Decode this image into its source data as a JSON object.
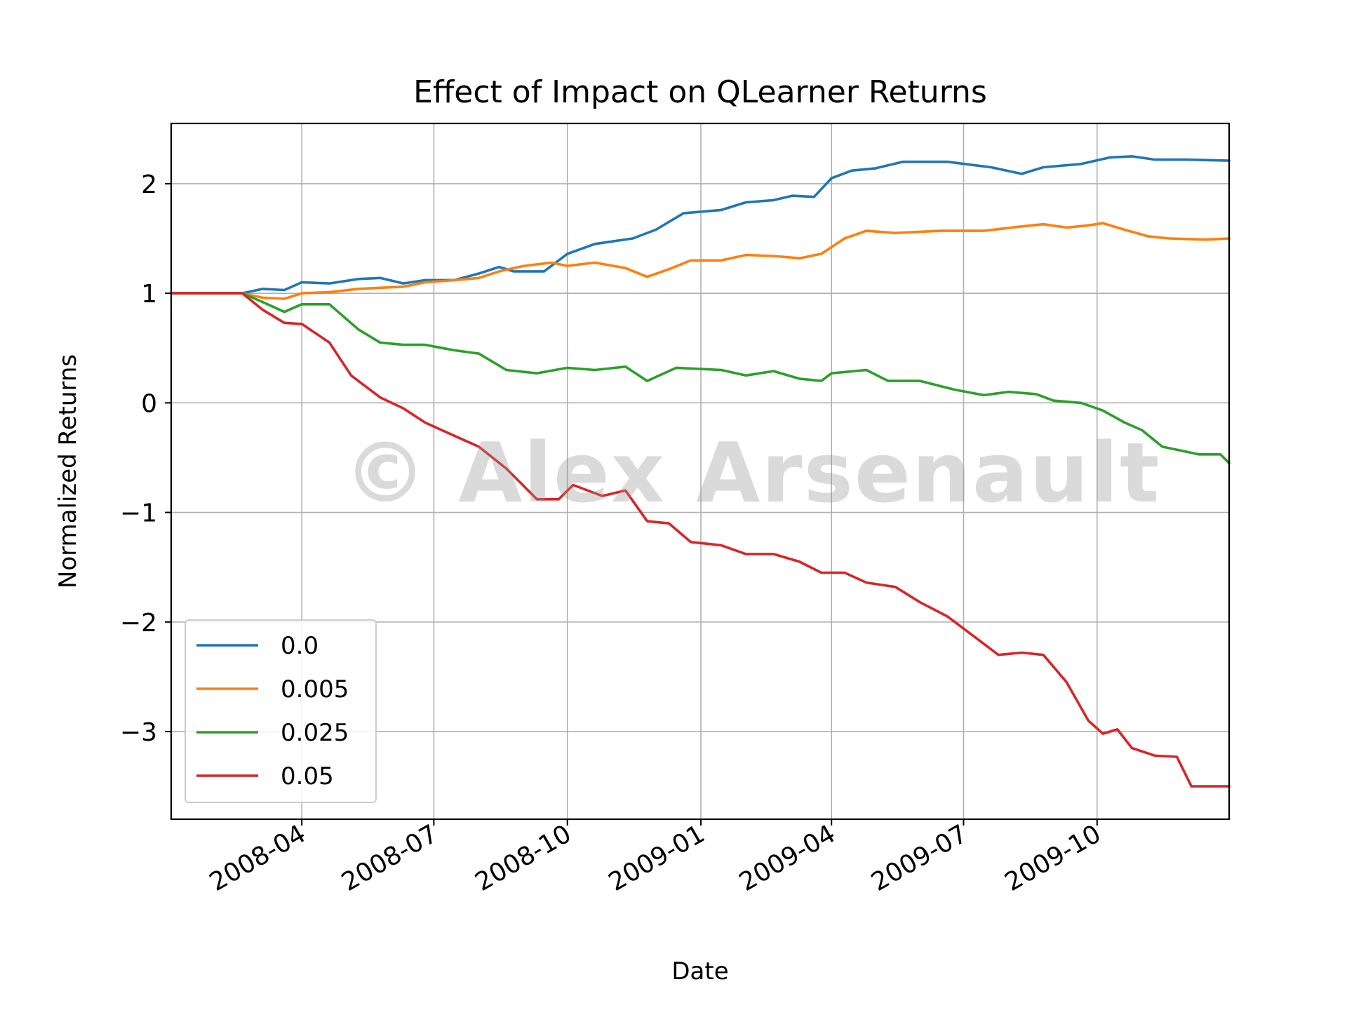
{
  "watermark": "© Alex Arsenault",
  "chart_data": {
    "type": "line",
    "title": "Effect of Impact on QLearner Returns",
    "xlabel": "Date",
    "ylabel": "Normalized Returns",
    "x_range": [
      "2008-01-02",
      "2009-12-31"
    ],
    "ylim": [
      -3.8,
      2.55
    ],
    "xticks": [
      "2008-04",
      "2008-07",
      "2008-10",
      "2009-01",
      "2009-04",
      "2009-07",
      "2009-10"
    ],
    "yticks": [
      {
        "value": 2,
        "label": "2"
      },
      {
        "value": 1,
        "label": "1"
      },
      {
        "value": 0,
        "label": "0"
      },
      {
        "value": -1,
        "label": "−1"
      },
      {
        "value": -2,
        "label": "−2"
      },
      {
        "value": -3,
        "label": "−3"
      }
    ],
    "grid": true,
    "legend_position": "lower-left",
    "series": [
      {
        "name": "0.0",
        "color": "#1f77b4",
        "points": [
          [
            "2008-01-02",
            1.0
          ],
          [
            "2008-02-20",
            1.0
          ],
          [
            "2008-03-05",
            1.04
          ],
          [
            "2008-03-20",
            1.03
          ],
          [
            "2008-04-01",
            1.1
          ],
          [
            "2008-04-20",
            1.09
          ],
          [
            "2008-05-10",
            1.13
          ],
          [
            "2008-05-25",
            1.14
          ],
          [
            "2008-06-10",
            1.09
          ],
          [
            "2008-06-25",
            1.12
          ],
          [
            "2008-07-15",
            1.12
          ],
          [
            "2008-08-01",
            1.18
          ],
          [
            "2008-08-15",
            1.24
          ],
          [
            "2008-08-25",
            1.2
          ],
          [
            "2008-09-15",
            1.2
          ],
          [
            "2008-10-01",
            1.36
          ],
          [
            "2008-10-20",
            1.45
          ],
          [
            "2008-11-15",
            1.5
          ],
          [
            "2008-12-01",
            1.58
          ],
          [
            "2008-12-20",
            1.73
          ],
          [
            "2009-01-15",
            1.76
          ],
          [
            "2009-02-01",
            1.83
          ],
          [
            "2009-02-20",
            1.85
          ],
          [
            "2009-03-05",
            1.89
          ],
          [
            "2009-03-20",
            1.88
          ],
          [
            "2009-04-01",
            2.05
          ],
          [
            "2009-04-15",
            2.12
          ],
          [
            "2009-05-01",
            2.14
          ],
          [
            "2009-05-20",
            2.2
          ],
          [
            "2009-06-20",
            2.2
          ],
          [
            "2009-07-20",
            2.15
          ],
          [
            "2009-08-10",
            2.09
          ],
          [
            "2009-08-25",
            2.15
          ],
          [
            "2009-09-20",
            2.18
          ],
          [
            "2009-10-10",
            2.24
          ],
          [
            "2009-10-25",
            2.25
          ],
          [
            "2009-11-10",
            2.22
          ],
          [
            "2009-12-01",
            2.22
          ],
          [
            "2009-12-31",
            2.21
          ]
        ]
      },
      {
        "name": "0.005",
        "color": "#ff7f0e",
        "points": [
          [
            "2008-01-02",
            1.0
          ],
          [
            "2008-02-20",
            1.0
          ],
          [
            "2008-03-05",
            0.96
          ],
          [
            "2008-03-20",
            0.95
          ],
          [
            "2008-04-01",
            1.0
          ],
          [
            "2008-04-20",
            1.01
          ],
          [
            "2008-05-10",
            1.04
          ],
          [
            "2008-05-25",
            1.05
          ],
          [
            "2008-06-10",
            1.06
          ],
          [
            "2008-06-25",
            1.1
          ],
          [
            "2008-07-15",
            1.12
          ],
          [
            "2008-08-01",
            1.14
          ],
          [
            "2008-08-15",
            1.2
          ],
          [
            "2008-09-01",
            1.25
          ],
          [
            "2008-09-20",
            1.28
          ],
          [
            "2008-10-01",
            1.25
          ],
          [
            "2008-10-20",
            1.28
          ],
          [
            "2008-11-10",
            1.23
          ],
          [
            "2008-11-25",
            1.15
          ],
          [
            "2008-12-10",
            1.22
          ],
          [
            "2008-12-25",
            1.3
          ],
          [
            "2009-01-15",
            1.3
          ],
          [
            "2009-02-01",
            1.35
          ],
          [
            "2009-02-20",
            1.34
          ],
          [
            "2009-03-10",
            1.32
          ],
          [
            "2009-03-25",
            1.36
          ],
          [
            "2009-04-10",
            1.5
          ],
          [
            "2009-04-25",
            1.57
          ],
          [
            "2009-05-15",
            1.55
          ],
          [
            "2009-06-15",
            1.57
          ],
          [
            "2009-07-15",
            1.57
          ],
          [
            "2009-08-10",
            1.61
          ],
          [
            "2009-08-25",
            1.63
          ],
          [
            "2009-09-10",
            1.6
          ],
          [
            "2009-09-25",
            1.62
          ],
          [
            "2009-10-05",
            1.64
          ],
          [
            "2009-10-20",
            1.58
          ],
          [
            "2009-11-05",
            1.52
          ],
          [
            "2009-11-20",
            1.5
          ],
          [
            "2009-12-15",
            1.49
          ],
          [
            "2009-12-31",
            1.5
          ]
        ]
      },
      {
        "name": "0.025",
        "color": "#2ca02c",
        "points": [
          [
            "2008-01-02",
            1.0
          ],
          [
            "2008-02-20",
            1.0
          ],
          [
            "2008-03-05",
            0.92
          ],
          [
            "2008-03-20",
            0.83
          ],
          [
            "2008-04-01",
            0.9
          ],
          [
            "2008-04-20",
            0.9
          ],
          [
            "2008-05-10",
            0.67
          ],
          [
            "2008-05-25",
            0.55
          ],
          [
            "2008-06-10",
            0.53
          ],
          [
            "2008-06-25",
            0.53
          ],
          [
            "2008-07-15",
            0.48
          ],
          [
            "2008-08-01",
            0.45
          ],
          [
            "2008-08-20",
            0.3
          ],
          [
            "2008-09-10",
            0.27
          ],
          [
            "2008-10-01",
            0.32
          ],
          [
            "2008-10-20",
            0.3
          ],
          [
            "2008-11-10",
            0.33
          ],
          [
            "2008-11-25",
            0.2
          ],
          [
            "2008-12-15",
            0.32
          ],
          [
            "2009-01-15",
            0.3
          ],
          [
            "2009-02-01",
            0.25
          ],
          [
            "2009-02-20",
            0.29
          ],
          [
            "2009-03-10",
            0.22
          ],
          [
            "2009-03-25",
            0.2
          ],
          [
            "2009-04-01",
            0.27
          ],
          [
            "2009-04-25",
            0.3
          ],
          [
            "2009-05-10",
            0.2
          ],
          [
            "2009-06-01",
            0.2
          ],
          [
            "2009-06-25",
            0.12
          ],
          [
            "2009-07-15",
            0.07
          ],
          [
            "2009-08-01",
            0.1
          ],
          [
            "2009-08-20",
            0.08
          ],
          [
            "2009-09-01",
            0.02
          ],
          [
            "2009-09-20",
            0.0
          ],
          [
            "2009-10-05",
            -0.07
          ],
          [
            "2009-10-20",
            -0.18
          ],
          [
            "2009-11-01",
            -0.25
          ],
          [
            "2009-11-15",
            -0.4
          ],
          [
            "2009-12-10",
            -0.47
          ],
          [
            "2009-12-25",
            -0.47
          ],
          [
            "2009-12-31",
            -0.55
          ]
        ]
      },
      {
        "name": "0.05",
        "color": "#d62728",
        "points": [
          [
            "2008-01-02",
            1.0
          ],
          [
            "2008-02-20",
            1.0
          ],
          [
            "2008-03-05",
            0.85
          ],
          [
            "2008-03-20",
            0.73
          ],
          [
            "2008-04-01",
            0.72
          ],
          [
            "2008-04-20",
            0.55
          ],
          [
            "2008-05-05",
            0.25
          ],
          [
            "2008-05-25",
            0.05
          ],
          [
            "2008-06-10",
            -0.05
          ],
          [
            "2008-06-25",
            -0.18
          ],
          [
            "2008-07-15",
            -0.3
          ],
          [
            "2008-08-01",
            -0.4
          ],
          [
            "2008-08-20",
            -0.6
          ],
          [
            "2008-09-10",
            -0.88
          ],
          [
            "2008-09-25",
            -0.88
          ],
          [
            "2008-10-05",
            -0.75
          ],
          [
            "2008-10-25",
            -0.85
          ],
          [
            "2008-11-10",
            -0.8
          ],
          [
            "2008-11-25",
            -1.08
          ],
          [
            "2008-12-10",
            -1.1
          ],
          [
            "2008-12-25",
            -1.27
          ],
          [
            "2009-01-15",
            -1.3
          ],
          [
            "2009-02-01",
            -1.38
          ],
          [
            "2009-02-20",
            -1.38
          ],
          [
            "2009-03-10",
            -1.45
          ],
          [
            "2009-03-25",
            -1.55
          ],
          [
            "2009-04-10",
            -1.55
          ],
          [
            "2009-04-25",
            -1.64
          ],
          [
            "2009-05-15",
            -1.68
          ],
          [
            "2009-06-01",
            -1.82
          ],
          [
            "2009-06-20",
            -1.95
          ],
          [
            "2009-07-10",
            -2.15
          ],
          [
            "2009-07-25",
            -2.3
          ],
          [
            "2009-08-10",
            -2.28
          ],
          [
            "2009-08-25",
            -2.3
          ],
          [
            "2009-09-10",
            -2.55
          ],
          [
            "2009-09-25",
            -2.9
          ],
          [
            "2009-10-05",
            -3.02
          ],
          [
            "2009-10-15",
            -2.98
          ],
          [
            "2009-10-25",
            -3.15
          ],
          [
            "2009-11-10",
            -3.22
          ],
          [
            "2009-11-25",
            -3.23
          ],
          [
            "2009-12-05",
            -3.5
          ],
          [
            "2009-12-20",
            -3.5
          ],
          [
            "2009-12-31",
            -3.5
          ]
        ]
      }
    ]
  }
}
